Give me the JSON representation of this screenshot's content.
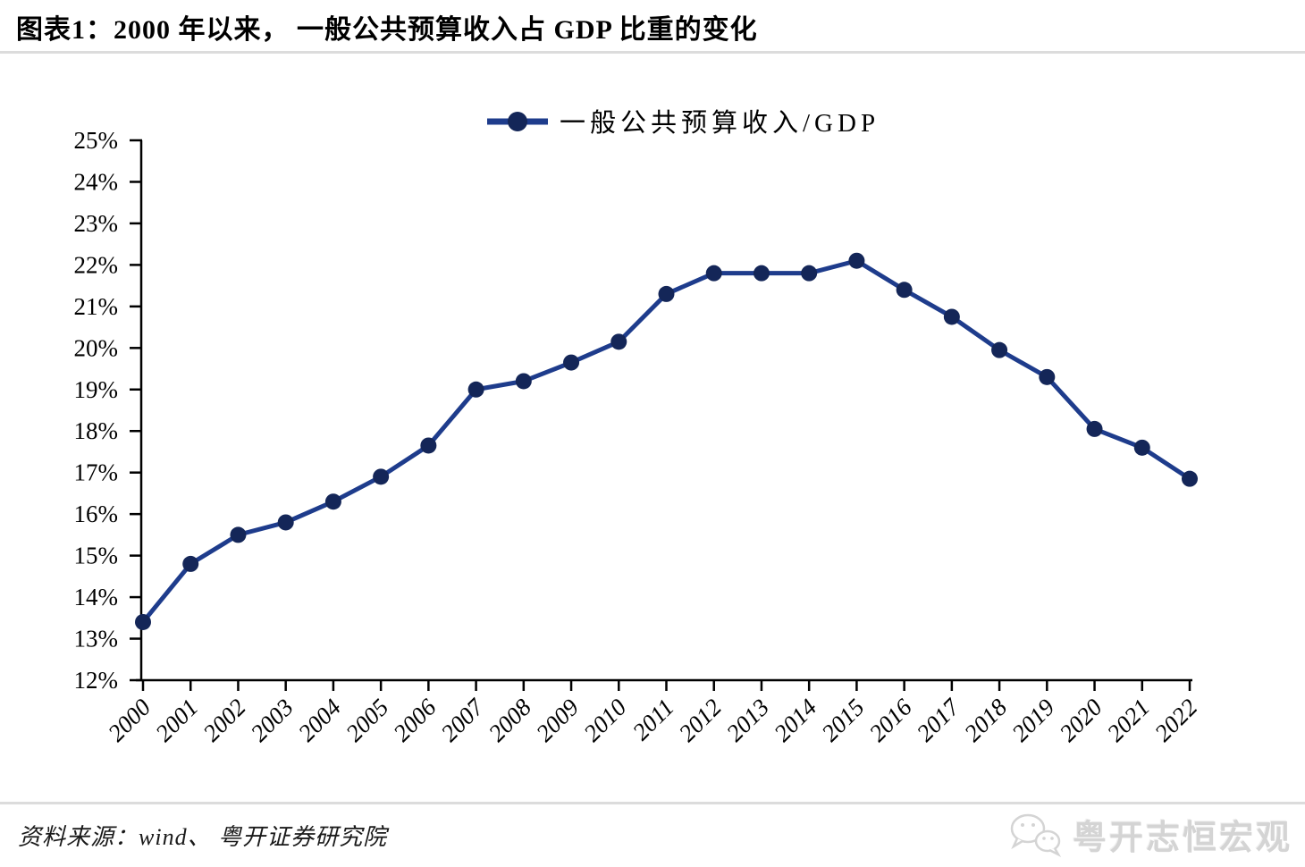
{
  "header": {
    "title": "图表1：2000 年以来， 一般公共预算收入占 GDP 比重的变化"
  },
  "chart_data": {
    "type": "line",
    "title": "图表1：2000 年以来，一般公共预算收入占 GDP 比重的变化",
    "categories": [
      "2000",
      "2001",
      "2002",
      "2003",
      "2004",
      "2005",
      "2006",
      "2007",
      "2008",
      "2009",
      "2010",
      "2011",
      "2012",
      "2013",
      "2014",
      "2015",
      "2016",
      "2017",
      "2018",
      "2019",
      "2020",
      "2021",
      "2022"
    ],
    "series": [
      {
        "name": "一般公共预算收入/GDP",
        "values": [
          13.4,
          14.8,
          15.5,
          15.8,
          16.3,
          16.9,
          17.65,
          19.0,
          19.2,
          19.65,
          20.15,
          21.3,
          21.8,
          21.8,
          21.8,
          22.1,
          21.4,
          20.75,
          19.95,
          19.3,
          18.05,
          17.6,
          16.85
        ]
      }
    ],
    "ylim": [
      12,
      25
    ],
    "y_tick_step": 1,
    "y_tick_suffix": "%",
    "xlabel": "",
    "ylabel": "",
    "grid": false,
    "legend_position": "top-center",
    "line_color": "#1e3c8c",
    "marker_color": "#142658",
    "axis_color": "#000000",
    "tick_label_color": "#000000"
  },
  "footer": {
    "source": "资料来源：wind、 粤开证券研究院",
    "watermark_text": "粤开志恒宏观",
    "watermark_icon": "wechat-icon"
  },
  "colors": {
    "divider": "#dcdcdc",
    "watermark": "#d4d4d4",
    "background": "#ffffff"
  }
}
